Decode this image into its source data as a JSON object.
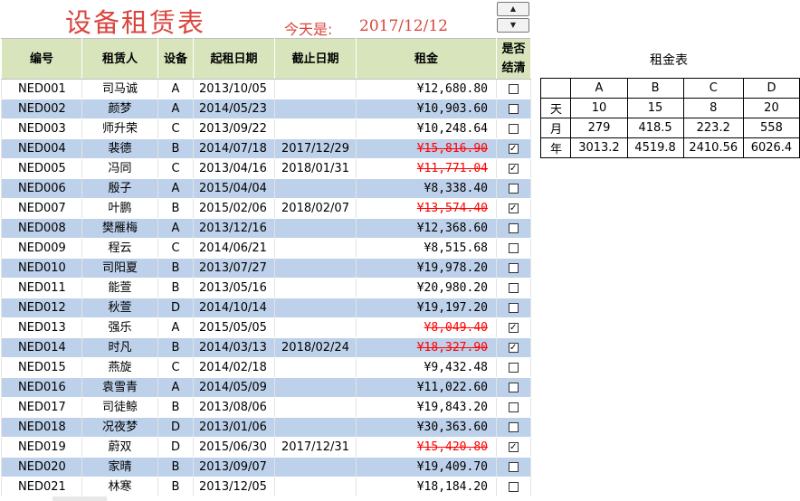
{
  "title": "设备租赁表",
  "today": {
    "label": "今天是:",
    "date": "2017/12/12"
  },
  "headers": {
    "id": "编号",
    "renter": "租赁人",
    "device": "设备",
    "start": "起租日期",
    "end": "截止日期",
    "rent": "租金",
    "settled_line1": "是否",
    "settled_line2": "结清"
  },
  "rows": [
    {
      "id": "NED001",
      "renter": "司马诚",
      "device": "A",
      "start": "2013/10/05",
      "end": "",
      "rent": "¥12,680.80",
      "settled": false
    },
    {
      "id": "NED002",
      "renter": "颜梦",
      "device": "A",
      "start": "2014/05/23",
      "end": "",
      "rent": "¥10,903.60",
      "settled": false
    },
    {
      "id": "NED003",
      "renter": "师升荣",
      "device": "C",
      "start": "2013/09/22",
      "end": "",
      "rent": "¥10,248.64",
      "settled": false
    },
    {
      "id": "NED004",
      "renter": "裴德",
      "device": "B",
      "start": "2014/07/18",
      "end": "2017/12/29",
      "rent": "¥15,816.90",
      "settled": true
    },
    {
      "id": "NED005",
      "renter": "冯同",
      "device": "C",
      "start": "2013/04/16",
      "end": "2018/01/31",
      "rent": "¥11,771.04",
      "settled": true
    },
    {
      "id": "NED006",
      "renter": "殷子",
      "device": "A",
      "start": "2015/04/04",
      "end": "",
      "rent": "¥8,338.40",
      "settled": false
    },
    {
      "id": "NED007",
      "renter": "叶鹏",
      "device": "B",
      "start": "2015/02/06",
      "end": "2018/02/07",
      "rent": "¥13,574.40",
      "settled": true
    },
    {
      "id": "NED008",
      "renter": "樊雁梅",
      "device": "A",
      "start": "2013/12/16",
      "end": "",
      "rent": "¥12,368.60",
      "settled": false
    },
    {
      "id": "NED009",
      "renter": "程云",
      "device": "C",
      "start": "2014/06/21",
      "end": "",
      "rent": "¥8,515.68",
      "settled": false
    },
    {
      "id": "NED010",
      "renter": "司阳夏",
      "device": "B",
      "start": "2013/07/27",
      "end": "",
      "rent": "¥19,978.20",
      "settled": false
    },
    {
      "id": "NED011",
      "renter": "能萱",
      "device": "B",
      "start": "2013/05/16",
      "end": "",
      "rent": "¥20,980.20",
      "settled": false
    },
    {
      "id": "NED012",
      "renter": "秋萱",
      "device": "D",
      "start": "2014/10/14",
      "end": "",
      "rent": "¥19,197.20",
      "settled": false
    },
    {
      "id": "NED013",
      "renter": "强乐",
      "device": "A",
      "start": "2015/05/05",
      "end": "",
      "rent": "¥8,049.40",
      "settled": true
    },
    {
      "id": "NED014",
      "renter": "时凡",
      "device": "B",
      "start": "2014/03/13",
      "end": "2018/02/24",
      "rent": "¥18,327.90",
      "settled": true
    },
    {
      "id": "NED015",
      "renter": "燕旋",
      "device": "C",
      "start": "2014/02/18",
      "end": "",
      "rent": "¥9,432.48",
      "settled": false
    },
    {
      "id": "NED016",
      "renter": "袁雪青",
      "device": "A",
      "start": "2014/05/09",
      "end": "",
      "rent": "¥11,022.60",
      "settled": false
    },
    {
      "id": "NED017",
      "renter": "司徒鲸",
      "device": "B",
      "start": "2013/08/06",
      "end": "",
      "rent": "¥19,843.20",
      "settled": false
    },
    {
      "id": "NED018",
      "renter": "况夜梦",
      "device": "D",
      "start": "2013/01/06",
      "end": "",
      "rent": "¥30,363.60",
      "settled": false
    },
    {
      "id": "NED019",
      "renter": "蔚双",
      "device": "D",
      "start": "2015/06/30",
      "end": "2017/12/31",
      "rent": "¥15,420.80",
      "settled": true
    },
    {
      "id": "NED020",
      "renter": "家晴",
      "device": "B",
      "start": "2013/09/07",
      "end": "",
      "rent": "¥19,409.70",
      "settled": false
    },
    {
      "id": "NED021",
      "renter": "林寒",
      "device": "B",
      "start": "2013/12/05",
      "end": "",
      "rent": "¥18,184.20",
      "settled": false
    }
  ],
  "rate_table": {
    "title": "租金表",
    "columns": [
      "A",
      "B",
      "C",
      "D"
    ],
    "rows": [
      {
        "label": "天",
        "values": [
          "10",
          "15",
          "8",
          "20"
        ]
      },
      {
        "label": "月",
        "values": [
          "279",
          "418.5",
          "223.2",
          "558"
        ]
      },
      {
        "label": "年",
        "values": [
          "3013.2",
          "4519.8",
          "2410.56",
          "6026.4"
        ]
      }
    ]
  },
  "colors": {
    "header_bg": "#d8e4bc",
    "band_bg": "#bdd1ea",
    "accent_red": "#d9463f",
    "settled_red": "#ff0000"
  },
  "icons": {
    "spin_up": "triangle-up-icon",
    "spin_down": "triangle-down-icon"
  }
}
